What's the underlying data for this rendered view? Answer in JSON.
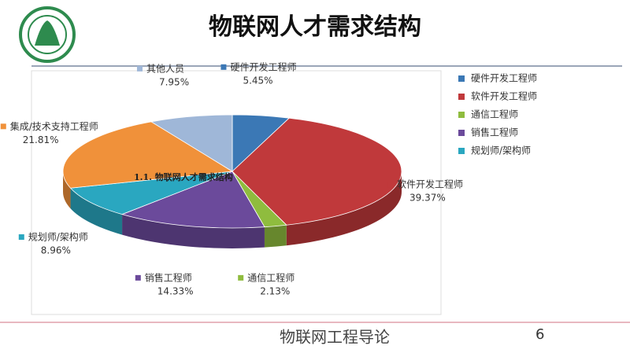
{
  "chart_data": {
    "type": "pie",
    "title": "物联网人才需求结构",
    "annotation": "1.1. 物联网人才需求结构",
    "categories": [
      "硬件开发工程师",
      "软件开发工程师",
      "通信工程师",
      "销售工程师",
      "规划师/架构师",
      "集成/技术支持工程师",
      "其他人员"
    ],
    "values": [
      5.45,
      39.37,
      2.13,
      14.33,
      8.96,
      21.81,
      7.95
    ],
    "value_labels": [
      "5.45%",
      "39.37%",
      "2.13%",
      "14.33%",
      "8.96%",
      "21.81%",
      "7.95%"
    ],
    "colors": [
      "#3b78b5",
      "#c0393b",
      "#8fbc3e",
      "#6b4a9b",
      "#2aa7c0",
      "#f0913a",
      "#9fb7d8"
    ],
    "legend": [
      "硬件开发工程师",
      "软件开发工程师",
      "通信工程师",
      "销售工程师",
      "规划师/架构师"
    ]
  },
  "footer": "物联网工程导论",
  "page_number": "6"
}
